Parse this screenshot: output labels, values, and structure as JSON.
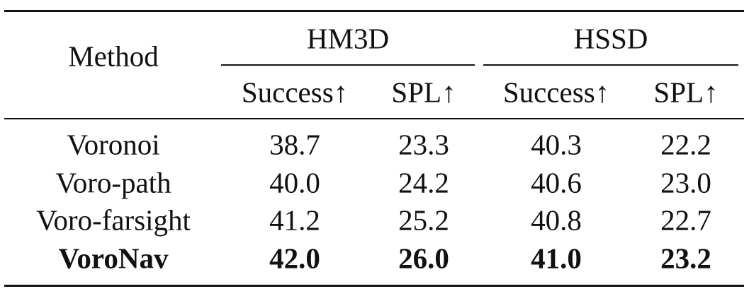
{
  "table": {
    "method_header": "Method",
    "groups": [
      "HM3D",
      "HSSD"
    ],
    "subheaders": [
      "Success↑",
      "SPL↑",
      "Success↑",
      "SPL↑"
    ],
    "rows": [
      [
        "Voronoi",
        "38.7",
        "23.3",
        "40.3",
        "22.2"
      ],
      [
        "Voro-path",
        "40.0",
        "24.2",
        "40.6",
        "23.0"
      ],
      [
        "Voro-farsight",
        "41.2",
        "25.2",
        "40.8",
        "22.7"
      ],
      [
        "VoroNav",
        "42.0",
        "26.0",
        "41.0",
        "23.2"
      ]
    ]
  }
}
